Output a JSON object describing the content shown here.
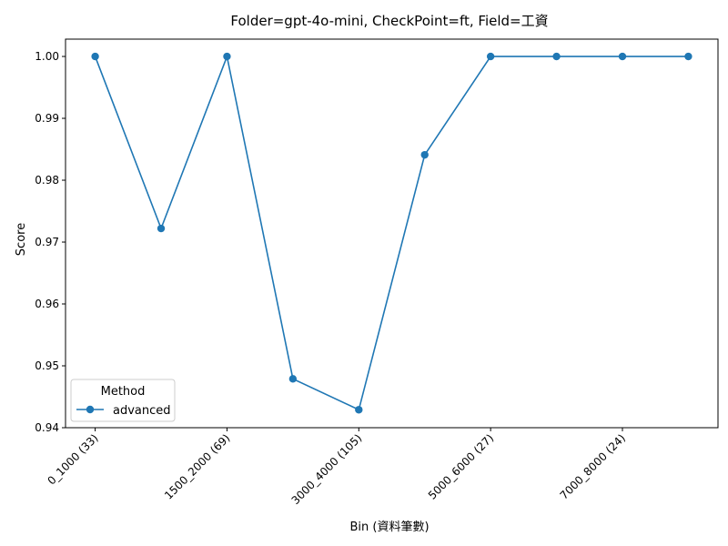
{
  "chart_data": {
    "type": "line",
    "title": "Folder=gpt-4o-mini, CheckPoint=ft, Field=工資",
    "xlabel": "Bin (資料筆數)",
    "ylabel": "Score",
    "categories": [
      "0_1000 (33)",
      "",
      "1500_2000 (69)",
      "",
      "3000_4000 (105)",
      "",
      "5000_6000 (27)",
      "",
      "7000_8000 (24)",
      ""
    ],
    "x_tick_labels": [
      "0_1000 (33)",
      "1500_2000 (69)",
      "3000_4000 (105)",
      "5000_6000 (27)",
      "7000_8000 (24)"
    ],
    "x_tick_positions": [
      0,
      2,
      4,
      6,
      8
    ],
    "series": [
      {
        "name": "advanced",
        "values": [
          1.0,
          0.9722,
          1.0,
          0.9479,
          0.9429,
          0.9841,
          1.0,
          1.0,
          1.0,
          1.0
        ]
      }
    ],
    "ylim": [
      0.94,
      1.0028
    ],
    "y_ticks": [
      0.94,
      0.95,
      0.96,
      0.97,
      0.98,
      0.99,
      1.0
    ],
    "y_tick_labels": [
      "0.94",
      "0.95",
      "0.96",
      "0.97",
      "0.98",
      "0.99",
      "1.00"
    ],
    "legend": {
      "title": "Method",
      "placement": "lower-left"
    },
    "grid": false,
    "colors": {
      "series": "#1f77b4"
    }
  }
}
